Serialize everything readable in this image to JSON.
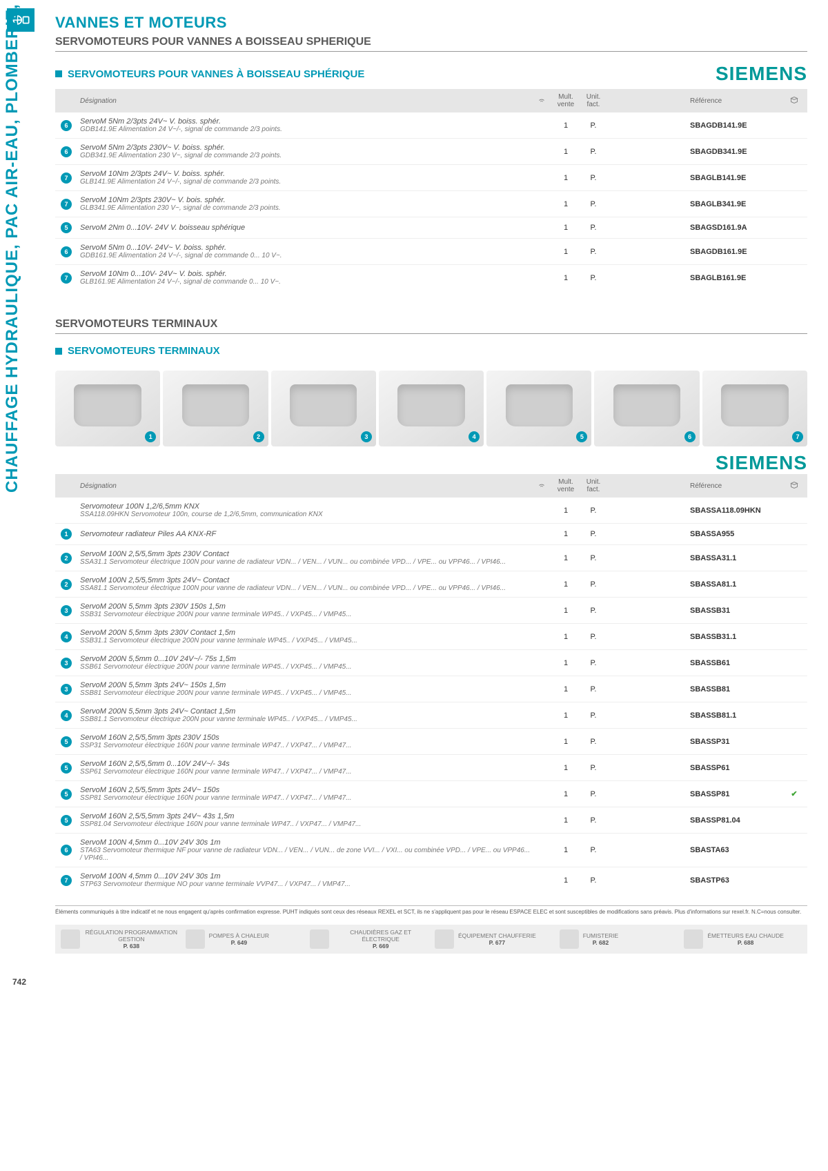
{
  "page_number": "742",
  "vertical_label": "CHAUFFAGE HYDRAULIQUE, PAC AIR-EAU, PLOMBERIE, ET SANITAIRE",
  "page_title": "VANNES ET MOTEURS",
  "brand": "SIEMENS",
  "colors": {
    "accent": "#0099b5",
    "brand": "#009999",
    "header_bg": "#e6e6e6",
    "border": "#eeeeee",
    "text_muted": "#777777",
    "check": "#3fa535"
  },
  "section1": {
    "title": "SERVOMOTEURS POUR VANNES A BOISSEAU SPHERIQUE",
    "subtitle": "SERVOMOTEURS POUR VANNES À BOISSEAU SPHÉRIQUE",
    "columns": {
      "desig": "Désignation",
      "mult": "Mult. vente",
      "unit": "Unit. fact.",
      "ref": "Référence"
    },
    "rows": [
      {
        "num": "6",
        "main": "ServoM 5Nm 2/3pts 24V~ V. boiss. sphér.",
        "sub": "GDB141.9E Alimentation 24 V~/-, signal de commande 2/3 points.",
        "mult": "1",
        "unit": "P.",
        "ref": "SBAGDB141.9E",
        "check": false
      },
      {
        "num": "6",
        "main": "ServoM 5Nm 2/3pts 230V~ V. boiss. sphér.",
        "sub": "GDB341.9E Alimentation 230 V~, signal de commande 2/3 points.",
        "mult": "1",
        "unit": "P.",
        "ref": "SBAGDB341.9E",
        "check": false
      },
      {
        "num": "7",
        "main": "ServoM 10Nm 2/3pts 24V~ V. boiss. sphér.",
        "sub": "GLB141.9E Alimentation 24 V~/-, signal de commande 2/3 points.",
        "mult": "1",
        "unit": "P.",
        "ref": "SBAGLB141.9E",
        "check": false
      },
      {
        "num": "7",
        "main": "ServoM 10Nm 2/3pts 230V~ V. bois. sphér.",
        "sub": "GLB341.9E Alimentation 230 V~, signal de commande 2/3 points.",
        "mult": "1",
        "unit": "P.",
        "ref": "SBAGLB341.9E",
        "check": false
      },
      {
        "num": "5",
        "main": "ServoM 2Nm 0...10V- 24V V. boisseau sphérique",
        "sub": "",
        "mult": "1",
        "unit": "P.",
        "ref": "SBAGSD161.9A",
        "check": false
      },
      {
        "num": "6",
        "main": "ServoM 5Nm 0...10V- 24V~ V. boiss. sphér.",
        "sub": "GDB161.9E Alimentation 24 V~/-, signal de commande 0... 10 V~.",
        "mult": "1",
        "unit": "P.",
        "ref": "SBAGDB161.9E",
        "check": false
      },
      {
        "num": "7",
        "main": "ServoM 10Nm 0...10V- 24V~ V. bois. sphér.",
        "sub": "GLB161.9E Alimentation 24 V~/-, signal de commande 0... 10 V~.",
        "mult": "1",
        "unit": "P.",
        "ref": "SBAGLB161.9E",
        "check": false
      }
    ]
  },
  "section2": {
    "title": "SERVOMOTEURS TERMINAUX",
    "subtitle": "SERVOMOTEURS TERMINAUX",
    "image_numbers": [
      "1",
      "2",
      "3",
      "4",
      "5",
      "6",
      "7"
    ],
    "columns": {
      "desig": "Désignation",
      "mult": "Mult. vente",
      "unit": "Unit. fact.",
      "ref": "Référence"
    },
    "rows": [
      {
        "num": "",
        "main": "Servomoteur 100N 1,2/6,5mm KNX",
        "sub": "SSA118.09HKN Servomoteur 100n, course de 1,2/6,5mm, communication KNX",
        "mult": "1",
        "unit": "P.",
        "ref": "SBASSA118.09HKN",
        "check": false
      },
      {
        "num": "1",
        "main": "Servomoteur radiateur Piles AA KNX-RF",
        "sub": "",
        "mult": "1",
        "unit": "P.",
        "ref": "SBASSA955",
        "check": false
      },
      {
        "num": "2",
        "main": "ServoM 100N 2,5/5,5mm 3pts 230V Contact",
        "sub": "SSA31.1 Servomoteur électrique 100N pour vanne de radiateur VDN... / VEN... / VUN... ou combinée VPD... / VPE... ou VPP46... / VPI46...",
        "mult": "1",
        "unit": "P.",
        "ref": "SBASSA31.1",
        "check": false
      },
      {
        "num": "2",
        "main": "ServoM 100N 2,5/5,5mm 3pts 24V~ Contact",
        "sub": "SSA81.1 Servomoteur électrique 100N pour vanne de radiateur VDN... / VEN... / VUN... ou combinée VPD... / VPE... ou VPP46... / VPI46...",
        "mult": "1",
        "unit": "P.",
        "ref": "SBASSA81.1",
        "check": false
      },
      {
        "num": "3",
        "main": "ServoM 200N 5,5mm 3pts 230V 150s 1,5m",
        "sub": "SSB31 Servomoteur électrique 200N pour vanne terminale WP45.. / VXP45... / VMP45...",
        "mult": "1",
        "unit": "P.",
        "ref": "SBASSB31",
        "check": false
      },
      {
        "num": "4",
        "main": "ServoM 200N 5,5mm 3pts 230V Contact 1,5m",
        "sub": "SSB31.1 Servomoteur électrique 200N pour vanne terminale WP45.. / VXP45... / VMP45...",
        "mult": "1",
        "unit": "P.",
        "ref": "SBASSB31.1",
        "check": false
      },
      {
        "num": "3",
        "main": "ServoM 200N 5,5mm 0...10V 24V~/- 75s 1,5m",
        "sub": "SSB61 Servomoteur électrique 200N pour vanne terminale WP45.. / VXP45... / VMP45...",
        "mult": "1",
        "unit": "P.",
        "ref": "SBASSB61",
        "check": false
      },
      {
        "num": "3",
        "main": "ServoM 200N 5,5mm 3pts 24V~ 150s 1,5m",
        "sub": "SSB81 Servomoteur électrique 200N pour vanne terminale WP45.. / VXP45... / VMP45...",
        "mult": "1",
        "unit": "P.",
        "ref": "SBASSB81",
        "check": false
      },
      {
        "num": "4",
        "main": "ServoM 200N 5,5mm 3pts 24V~ Contact 1,5m",
        "sub": "SSB81.1 Servomoteur électrique 200N pour vanne terminale WP45.. / VXP45... / VMP45...",
        "mult": "1",
        "unit": "P.",
        "ref": "SBASSB81.1",
        "check": false
      },
      {
        "num": "5",
        "main": "ServoM 160N 2,5/5,5mm 3pts 230V 150s",
        "sub": "SSP31 Servomoteur électrique 160N pour vanne terminale WP47.. / VXP47... / VMP47...",
        "mult": "1",
        "unit": "P.",
        "ref": "SBASSP31",
        "check": false
      },
      {
        "num": "5",
        "main": "ServoM 160N 2,5/5,5mm 0...10V 24V~/- 34s",
        "sub": "SSP61 Servomoteur électrique 160N pour vanne terminale WP47.. / VXP47... / VMP47...",
        "mult": "1",
        "unit": "P.",
        "ref": "SBASSP61",
        "check": false
      },
      {
        "num": "5",
        "main": "ServoM 160N 2,5/5,5mm 3pts 24V~ 150s",
        "sub": "SSP81 Servomoteur électrique 160N pour vanne terminale WP47.. / VXP47... / VMP47...",
        "mult": "1",
        "unit": "P.",
        "ref": "SBASSP81",
        "check": true
      },
      {
        "num": "5",
        "main": "ServoM 160N 2,5/5,5mm 3pts 24V~ 43s 1,5m",
        "sub": "SSP81.04 Servomoteur électrique 160N pour vanne terminale WP47.. / VXP47... / VMP47...",
        "mult": "1",
        "unit": "P.",
        "ref": "SBASSP81.04",
        "check": false
      },
      {
        "num": "6",
        "main": "ServoM 100N 4,5mm 0...10V 24V 30s 1m",
        "sub": "STA63 Servomoteur thermique NF pour vanne de radiateur VDN... / VEN... / VUN... de zone VVI... / VXI... ou combinée VPD... / VPE... ou VPP46... / VPI46...",
        "mult": "1",
        "unit": "P.",
        "ref": "SBASTA63",
        "check": false
      },
      {
        "num": "7",
        "main": "ServoM 100N 4,5mm 0...10V 24V 30s 1m",
        "sub": "STP63 Servomoteur thermique NO pour vanne terminale VVP47... / VXP47... / VMP47...",
        "mult": "1",
        "unit": "P.",
        "ref": "SBASTP63",
        "check": false
      }
    ]
  },
  "disclaimer": "Éléments communiqués à titre indicatif et ne nous engagent qu'après confirmation expresse. PUHT indiqués sont ceux des réseaux REXEL et SCT, ils ne s'appliquent pas pour le réseau ESPACE ELEC et sont susceptibles de modifications sans préavis. Plus d'informations sur rexel.fr. N.C=nous consulter.",
  "footer": [
    {
      "title": "RÉGULATION PROGRAMMATION GESTION",
      "page": "P. 638"
    },
    {
      "title": "POMPES À CHALEUR",
      "page": "P. 649"
    },
    {
      "title": "CHAUDIÈRES GAZ ET ÉLECTRIQUE",
      "page": "P. 669"
    },
    {
      "title": "ÉQUIPEMENT CHAUFFERIE",
      "page": "P. 677"
    },
    {
      "title": "FUMISTERIE",
      "page": "P. 682"
    },
    {
      "title": "ÉMETTEURS EAU CHAUDE",
      "page": "P. 688"
    }
  ]
}
